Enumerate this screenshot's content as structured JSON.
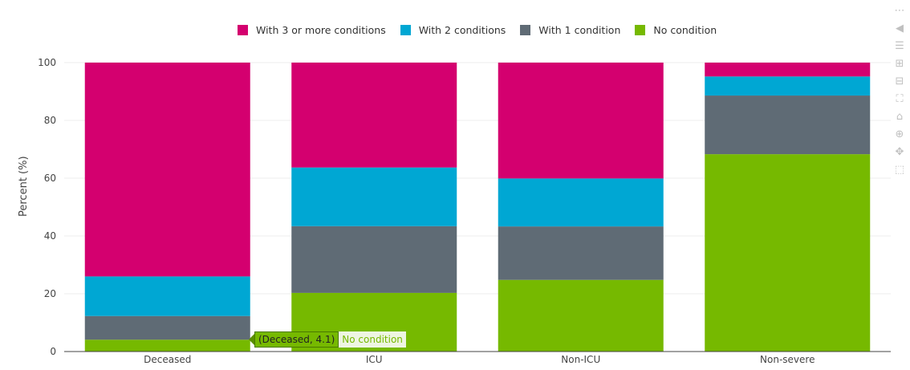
{
  "chart_data": {
    "type": "bar",
    "stacked": true,
    "categories": [
      "Deceased",
      "ICU",
      "Non-ICU",
      "Non-severe"
    ],
    "series": [
      {
        "name": "No condition",
        "color": "#76b900",
        "values": [
          4.1,
          20.3,
          24.8,
          68.3
        ]
      },
      {
        "name": "With 1 condition",
        "color": "#5f6b75",
        "values": [
          8.2,
          23.1,
          18.5,
          20.3
        ]
      },
      {
        "name": "With 2 conditions",
        "color": "#00a7d3",
        "values": [
          13.7,
          20.3,
          16.6,
          6.6
        ]
      },
      {
        "name": "With 3 or more conditions",
        "color": "#d4006f",
        "values": [
          74.0,
          36.3,
          40.1,
          4.8
        ]
      }
    ],
    "legend_order": [
      "With 3 or more conditions",
      "With 2 conditions",
      "With 1 condition",
      "No condition"
    ],
    "legend_position": "top",
    "ylabel": "Percent (%)",
    "ylim": [
      0,
      100
    ],
    "yticks": [
      0,
      20,
      40,
      60,
      80,
      100
    ],
    "grid": true
  },
  "hover": {
    "label": "(Deceased, 4.1)",
    "series_name": "No condition"
  },
  "modebar": {
    "icons": [
      "camera-icon",
      "compare-icon",
      "closest-icon",
      "zoom-in-icon",
      "zoom-out-icon",
      "autoscale-icon",
      "reset-icon",
      "zoom-icon",
      "pan-icon",
      "select-icon"
    ]
  }
}
